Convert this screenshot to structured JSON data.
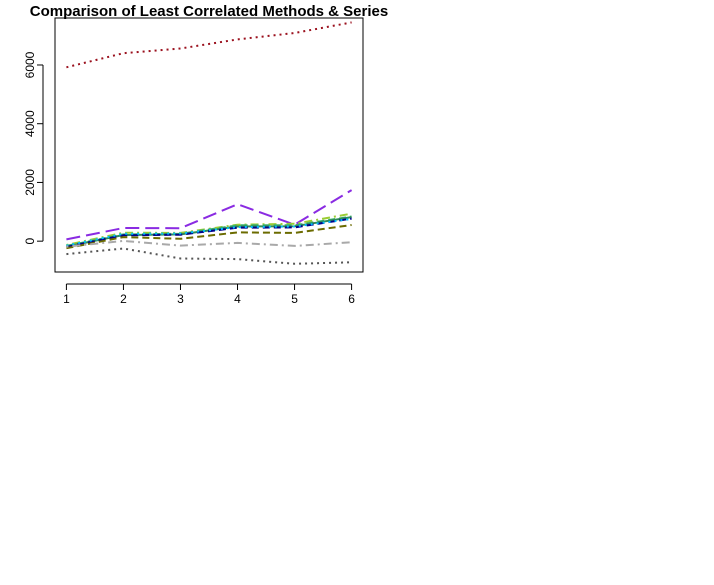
{
  "chart_data": {
    "type": "line",
    "title": "Comparison of Least Correlated Methods & Series",
    "xlabel": "",
    "ylabel": "",
    "x": [
      1,
      2,
      3,
      4,
      5,
      6
    ],
    "xticks": [
      "1",
      "2",
      "3",
      "4",
      "5",
      "6"
    ],
    "yticks": [
      "0",
      "2000",
      "4000",
      "6000"
    ],
    "xlim": [
      0.8,
      6.2
    ],
    "ylim": [
      -1050,
      7600
    ],
    "grid": false,
    "legend": "none",
    "series": [
      {
        "color": "#9b111e",
        "dash": "dotted",
        "values": [
          5920,
          6400,
          6560,
          6870,
          7090,
          7450
        ]
      },
      {
        "color": "#8a2be2",
        "dash": "longdash",
        "values": [
          60,
          450,
          440,
          1260,
          560,
          1740
        ]
      },
      {
        "color": "#9acd32",
        "dash": "dashdot",
        "values": [
          -130,
          290,
          280,
          560,
          590,
          940
        ]
      },
      {
        "color": "#3cb371",
        "dash": "dashed",
        "values": [
          -160,
          230,
          250,
          540,
          540,
          840
        ]
      },
      {
        "color": "#2e8b57",
        "dash": "solid",
        "values": [
          -180,
          210,
          230,
          500,
          510,
          820
        ]
      },
      {
        "color": "#00008b",
        "dash": "dashed",
        "values": [
          -200,
          200,
          220,
          460,
          470,
          770
        ]
      },
      {
        "color": "#00bfff",
        "dash": "dotted",
        "values": [
          -150,
          250,
          260,
          480,
          500,
          760
        ]
      },
      {
        "color": "#6b6b00",
        "dash": "dashed",
        "values": [
          -240,
          140,
          80,
          300,
          280,
          550
        ]
      },
      {
        "color": "#a9a9a9",
        "dash": "dashdot",
        "values": [
          -190,
          10,
          -150,
          -60,
          -160,
          -40
        ]
      },
      {
        "color": "#555555",
        "dash": "dotted",
        "values": [
          -440,
          -250,
          -590,
          -610,
          -770,
          -720
        ]
      }
    ]
  }
}
